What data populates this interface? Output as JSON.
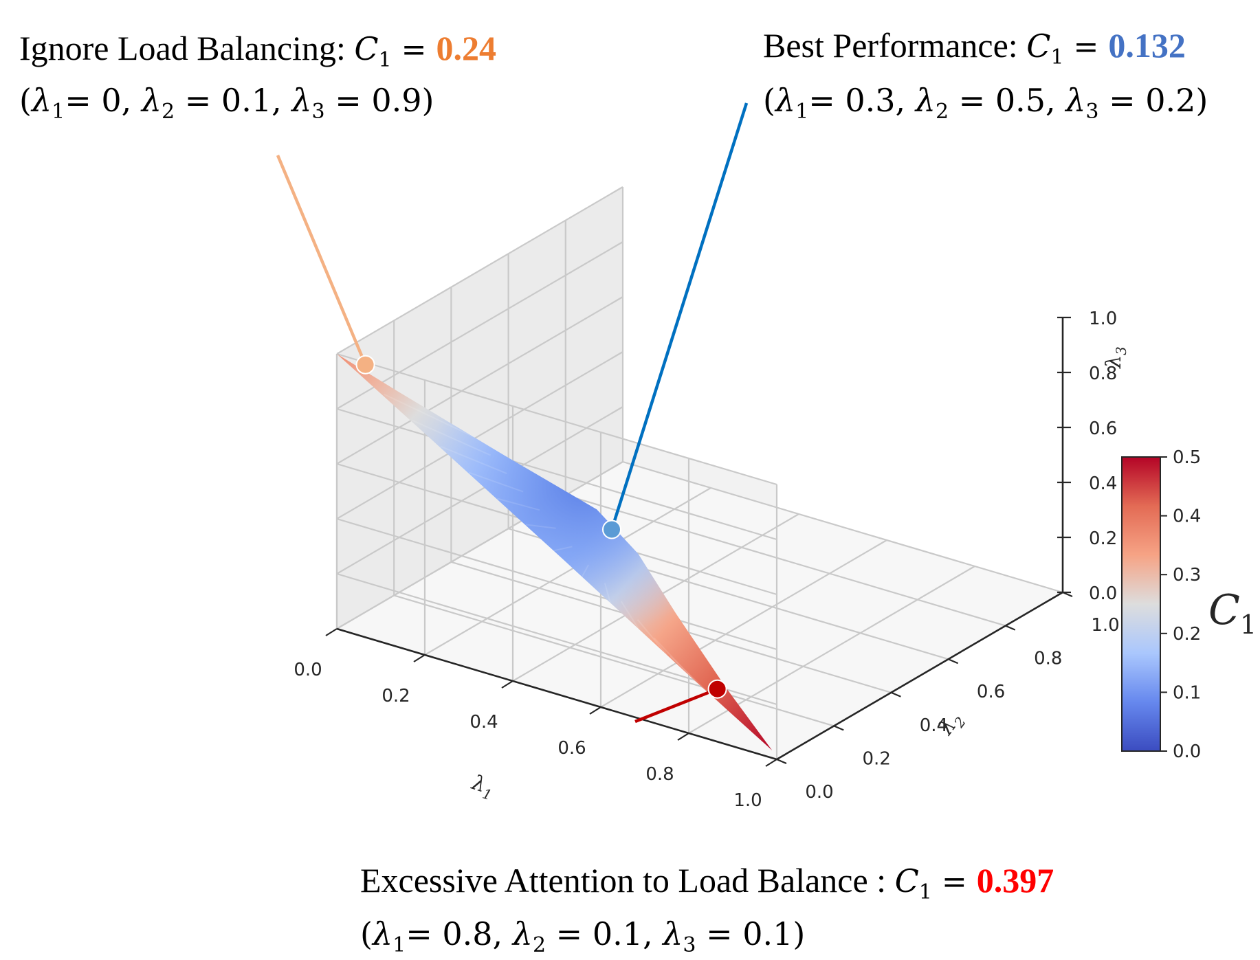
{
  "chart_data": {
    "type": "surface3d",
    "title": "",
    "axes": {
      "x": {
        "label": "λ1",
        "range": [
          0,
          1
        ],
        "ticks": [
          "0.0",
          "0.2",
          "0.4",
          "0.6",
          "0.8",
          "1.0"
        ]
      },
      "y": {
        "label": "λ2",
        "range": [
          0,
          1
        ],
        "ticks": [
          "0.0",
          "0.2",
          "0.4",
          "0.6",
          "0.8",
          "1.0"
        ]
      },
      "z": {
        "label": "λ3",
        "range": [
          0,
          1
        ],
        "ticks": [
          "0.0",
          "0.2",
          "0.4",
          "0.6",
          "0.8",
          "1.0"
        ]
      }
    },
    "surface": {
      "constraint": "λ1 + λ2 + λ3 = 1",
      "metric": "C1",
      "colormap": "coolwarm",
      "min_point": [
        0.3,
        0.5,
        0.2
      ],
      "min_value": 0.132
    },
    "colorbar": {
      "label": "C1",
      "label_sub": "1",
      "range": [
        0,
        0.5
      ],
      "ticks": [
        "0.0",
        "0.1",
        "0.2",
        "0.3",
        "0.4",
        "0.5"
      ],
      "colors": [
        "#3b4cc0",
        "#6688ee",
        "#aac7fd",
        "#dddddd",
        "#f6a385",
        "#e36b55",
        "#b40426"
      ]
    },
    "highlights": [
      {
        "id": "ignore",
        "title": "Ignore Load Balancing:",
        "metric": "C",
        "metric_sub": "1",
        "eq": "=",
        "value": "0.24",
        "value_color": "#ed7d31",
        "point": [
          0,
          0.1,
          0.9
        ],
        "point_color": "#f4b183",
        "line_color": "#f4b183",
        "params": [
          "(",
          "λ",
          "1",
          "= 0, ",
          "λ",
          "2",
          " = 0.1, ",
          "λ",
          "3",
          " = 0.9)"
        ]
      },
      {
        "id": "best",
        "title": "Best Performance:",
        "metric": "C",
        "metric_sub": "1",
        "eq": "=",
        "value": "0.132",
        "value_color": "#4472c4",
        "point": [
          0.3,
          0.5,
          0.2
        ],
        "point_color": "#5b9bd5",
        "line_color": "#0070c0",
        "params": [
          "(",
          "λ",
          "1",
          "= 0.3, ",
          "λ",
          "2",
          " = 0.5, ",
          "λ",
          "3",
          " = 0.2)"
        ]
      },
      {
        "id": "excessive",
        "title": "Excessive Attention to Load Balance :",
        "metric": "C",
        "metric_sub": "1",
        "eq": "=",
        "value": "0.397",
        "value_color": "#ff0000",
        "point": [
          0.8,
          0.1,
          0.1
        ],
        "point_color": "#c00000",
        "line_color": "#c00000",
        "params": [
          "(",
          "λ",
          "1",
          "= 0.8, ",
          "λ",
          "2",
          " = 0.1, ",
          "λ",
          "3",
          " = 0.1)"
        ]
      }
    ]
  }
}
